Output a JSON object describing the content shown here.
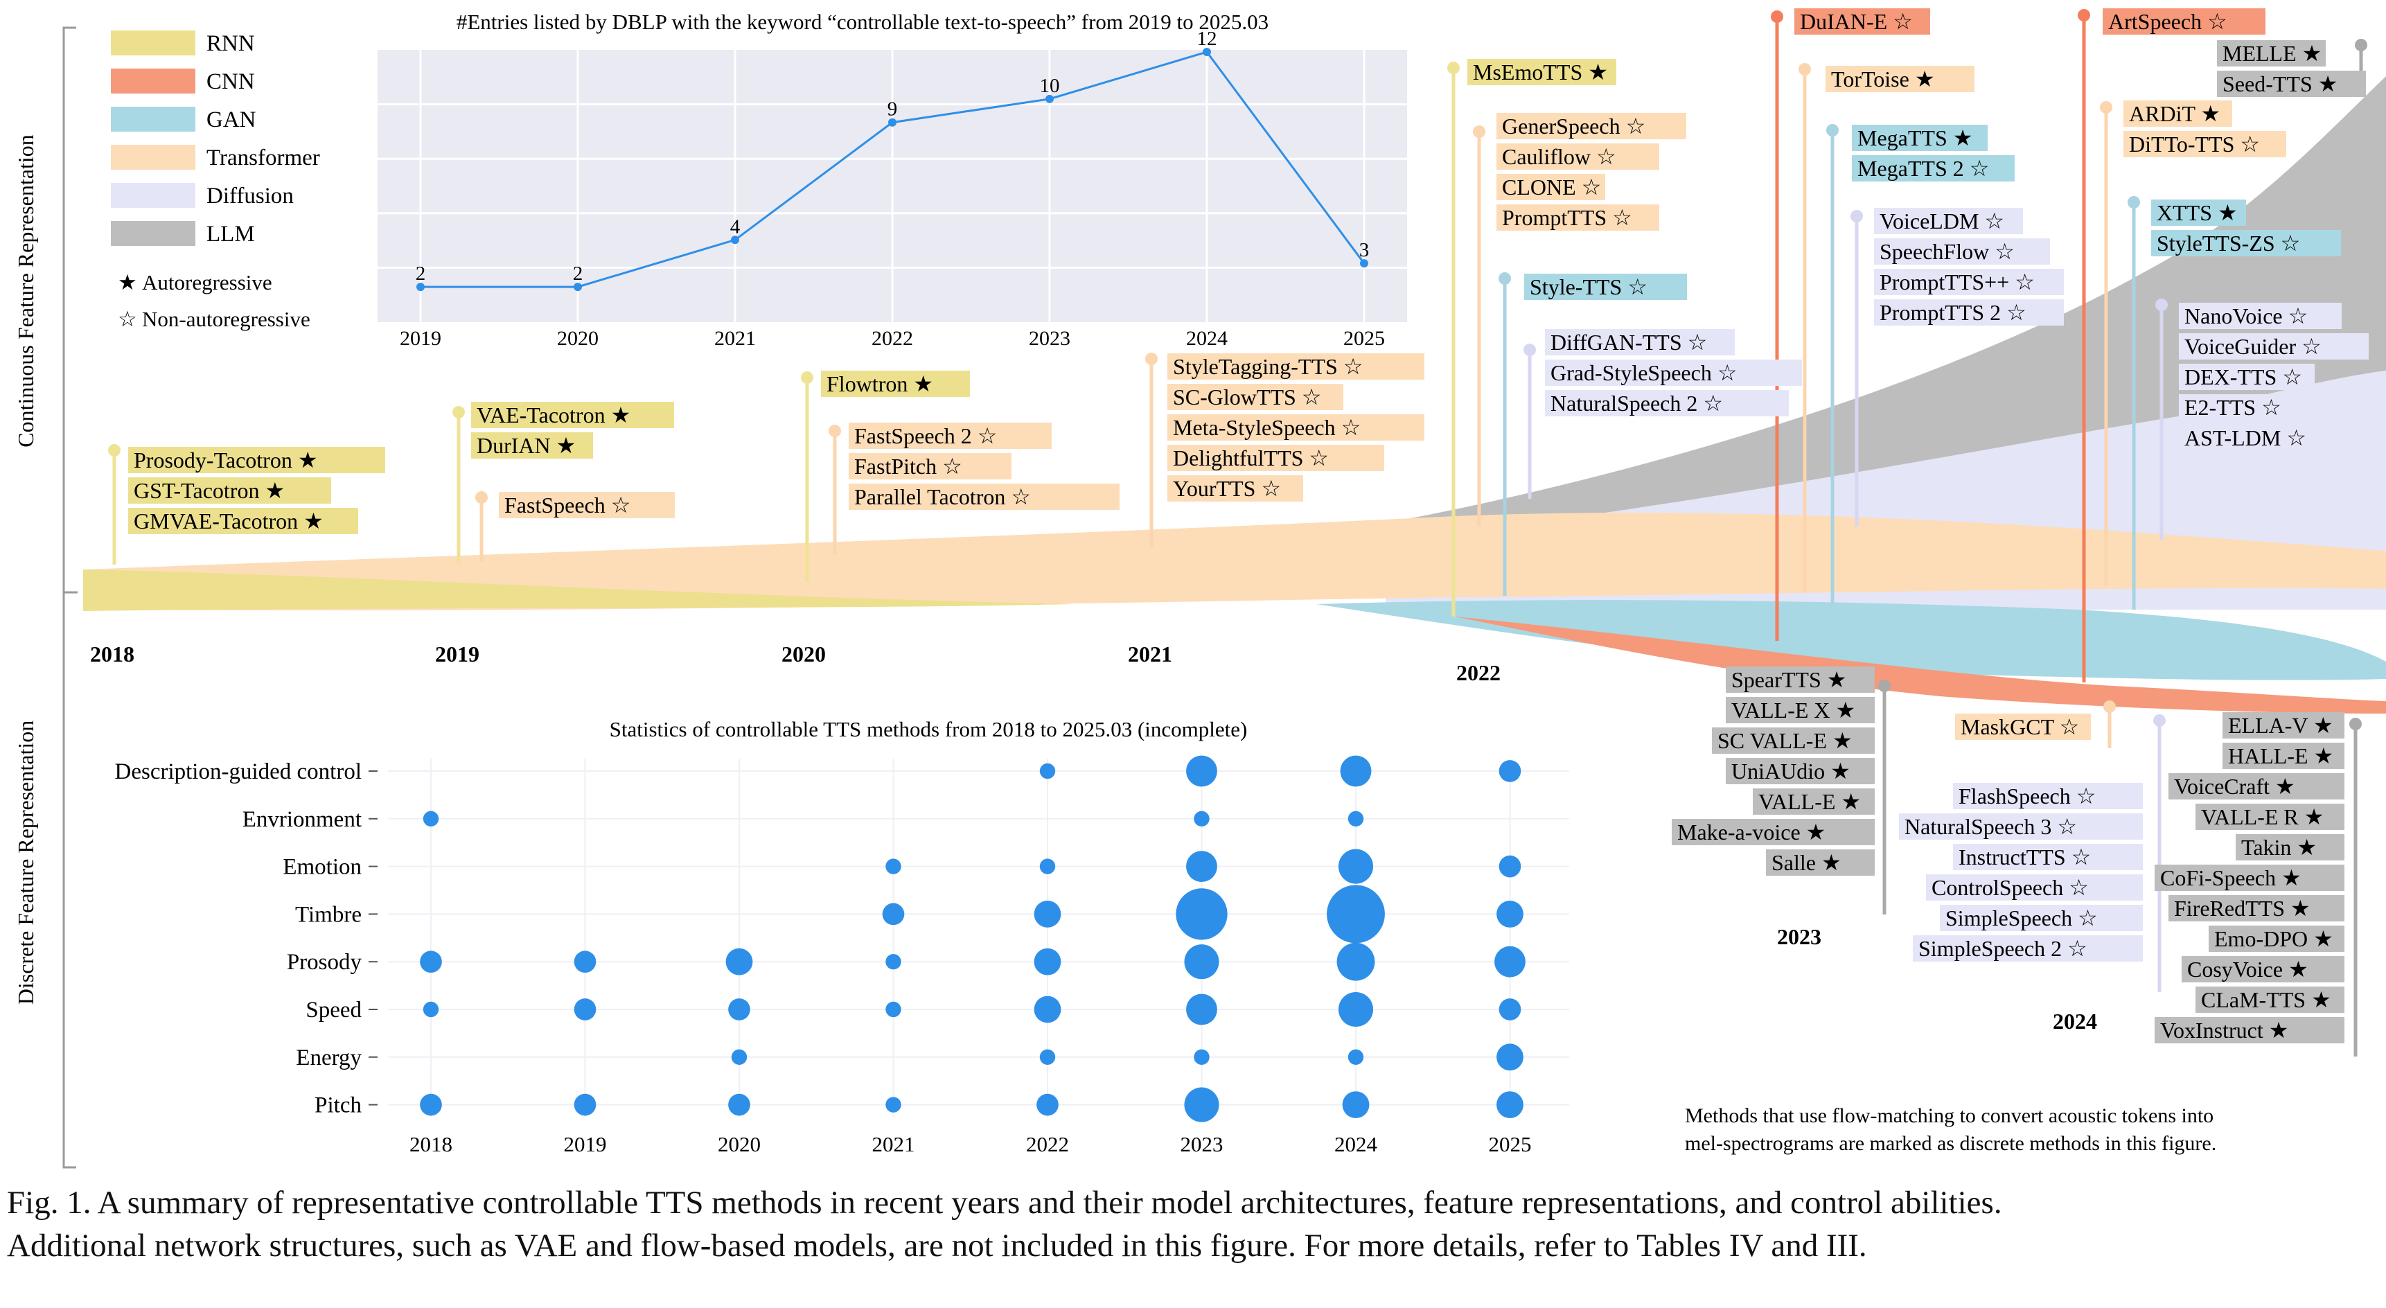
{
  "legend": {
    "architectures": [
      {
        "label": "RNN",
        "color": "#ECE08E"
      },
      {
        "label": "CNN",
        "color": "#F5997A"
      },
      {
        "label": "GAN",
        "color": "#A8D8E3"
      },
      {
        "label": "Transformer",
        "color": "#FCDDB8"
      },
      {
        "label": "Diffusion",
        "color": "#E5E5F8"
      },
      {
        "label": "LLM",
        "color": "#BDBDBD"
      }
    ],
    "markers": [
      {
        "symbol": "★",
        "label": "Autoregressive"
      },
      {
        "symbol": "☆",
        "label": "Non-autoregressive"
      }
    ]
  },
  "axis_labels": {
    "continuous": "Continuous Feature Representation",
    "discrete": "Discrete Feature Representation"
  },
  "timeline_years": [
    "2018",
    "2019",
    "2020",
    "2021",
    "2022",
    "2023",
    "2024"
  ],
  "timeline_groups": [
    {
      "id": "g2018",
      "color": "#ECE08E",
      "items": [
        "Prosody-Tacotron ★",
        "GST-Tacotron ★",
        "GMVAE-Tacotron ★"
      ]
    },
    {
      "id": "g2019a",
      "color": "#ECE08E",
      "items": [
        "VAE-Tacotron ★",
        "DurIAN ★"
      ]
    },
    {
      "id": "g2019b",
      "color": "#FCDDB8",
      "items": [
        "FastSpeech ☆"
      ]
    },
    {
      "id": "g2020a",
      "color": "#ECE08E",
      "items": [
        "Flowtron ★"
      ]
    },
    {
      "id": "g2020b",
      "color": "#FCDDB8",
      "items": [
        "FastSpeech 2 ☆",
        "FastPitch ☆",
        "Parallel Tacotron ☆"
      ]
    },
    {
      "id": "g2021",
      "color": "#FCDDB8",
      "items": [
        "StyleTagging-TTS ☆",
        "SC-GlowTTS ☆",
        "Meta-StyleSpeech ☆",
        "DelightfulTTS ☆",
        "YourTTS ☆"
      ]
    },
    {
      "id": "g2022a",
      "color": "#ECE08E",
      "items": [
        "MsEmoTTS ★"
      ]
    },
    {
      "id": "g2022b",
      "color": "#FCDDB8",
      "items": [
        "GenerSpeech ☆",
        "Cauliflow ☆",
        "CLONE ☆",
        "PromptTTS ☆"
      ]
    },
    {
      "id": "g2022c",
      "color": "#A8D8E3",
      "items": [
        "Style-TTS ☆"
      ]
    },
    {
      "id": "g2022d",
      "color": "#E5E5F8",
      "items": [
        "DiffGAN-TTS ☆",
        "Grad-StyleSpeech ☆",
        "NaturalSpeech 2 ☆"
      ]
    },
    {
      "id": "g2023a",
      "color": "#F5997A",
      "items": [
        "DuIAN-E ☆"
      ]
    },
    {
      "id": "g2023b",
      "color": "#FCDDB8",
      "items": [
        "TorToise ★"
      ]
    },
    {
      "id": "g2023c",
      "color": "#A8D8E3",
      "items": [
        "MegaTTS ★",
        "MegaTTS 2 ☆"
      ]
    },
    {
      "id": "g2023d",
      "color": "#E5E5F8",
      "items": [
        "VoiceLDM ☆",
        "SpeechFlow ☆",
        "PromptTTS++ ☆",
        "PromptTTS 2 ☆"
      ]
    },
    {
      "id": "g2024a",
      "color": "#F5997A",
      "items": [
        "ArtSpeech ☆"
      ]
    },
    {
      "id": "g2024b",
      "color": "#BDBDBD",
      "items": [
        "MELLE ★",
        "Seed-TTS ★"
      ]
    },
    {
      "id": "g2024c",
      "color": "#FCDDB8",
      "items": [
        "ARDiT ★",
        "DiTTo-TTS ☆"
      ]
    },
    {
      "id": "g2024d",
      "color": "#A8D8E3",
      "items": [
        "XTTS ★",
        "StyleTTS-ZS ☆"
      ]
    },
    {
      "id": "g2024e",
      "color": "#E5E5F8",
      "items": [
        "NanoVoice ☆",
        "VoiceGuider ☆",
        "DEX-TTS ☆",
        "E2-TTS ☆",
        "AST-LDM ☆"
      ]
    },
    {
      "id": "d2023",
      "color": "#BDBDBD",
      "items": [
        "SpearTTS ★",
        "VALL-E X ★",
        "SC VALL-E ★",
        "UniAUdio ★",
        "VALL-E ★",
        "Make-a-voice ★",
        "Salle ★"
      ]
    },
    {
      "id": "d2024a",
      "color": "#FCDDB8",
      "items": [
        "MaskGCT ☆"
      ]
    },
    {
      "id": "d2024b",
      "color": "#E5E5F8",
      "items": [
        "FlashSpeech ☆",
        "NaturalSpeech 3 ☆",
        "InstructTTS ☆",
        "ControlSpeech ☆",
        "SimpleSpeech ☆",
        "SimpleSpeech 2 ☆"
      ]
    },
    {
      "id": "d2024c",
      "color": "#BDBDBD",
      "items": [
        "ELLA-V ★",
        "HALL-E ★",
        "VoiceCraft ★",
        "VALL-E R ★",
        "Takin ★",
        "CoFi-Speech ★",
        "FireRedTTS ★",
        "Emo-DPO ★",
        "CosyVoice ★",
        "CLaM-TTS ★",
        "VoxInstruct ★"
      ]
    }
  ],
  "flow_note": [
    "Methods that use flow-matching to convert acoustic tokens into",
    "mel-spectrograms are marked as discrete methods in this figure."
  ],
  "chart_data": [
    {
      "type": "line",
      "title": "#Entries listed by DBLP with the keyword “controllable text-to-speech” from 2019 to 2025.03",
      "x": [
        "2019",
        "2020",
        "2021",
        "2022",
        "2023",
        "2024",
        "2025"
      ],
      "values": [
        2,
        2,
        4,
        9,
        10,
        12,
        3
      ],
      "ylim": [
        1,
        12
      ],
      "grid": true,
      "color": "#2E8FE8"
    },
    {
      "type": "scatter",
      "title": "Statistics of controllable TTS methods from 2018 to 2025.03 (incomplete)",
      "x": [
        "2018",
        "2019",
        "2020",
        "2021",
        "2022",
        "2023",
        "2024",
        "2025"
      ],
      "y": [
        "Description-guided control",
        "Envrionment",
        "Emotion",
        "Timbre",
        "Prosody",
        "Speed",
        "Energy",
        "Pitch"
      ],
      "size_scale": "relative counts (area)",
      "sizes": [
        [
          0,
          0,
          0,
          0,
          1,
          4,
          4,
          2
        ],
        [
          1,
          0,
          0,
          0,
          0,
          1,
          1,
          0
        ],
        [
          0,
          0,
          0,
          1,
          1,
          4,
          5,
          2
        ],
        [
          0,
          0,
          0,
          2,
          3,
          11,
          14,
          3
        ],
        [
          2,
          2,
          3,
          1,
          3,
          5,
          6,
          4
        ],
        [
          1,
          2,
          2,
          1,
          3,
          4,
          5,
          2
        ],
        [
          0,
          0,
          1,
          0,
          1,
          1,
          1,
          3
        ],
        [
          2,
          2,
          2,
          1,
          2,
          5,
          3,
          3
        ]
      ],
      "grid": true,
      "color": "#2E8FE8"
    }
  ],
  "caption": [
    "Fig. 1.  A summary of representative controllable TTS methods in recent years and their model architectures, feature representations, and control abilities.",
    "Additional network structures, such as VAE and flow-based models, are not included in this figure. For more details, refer to Tables IV and III."
  ]
}
